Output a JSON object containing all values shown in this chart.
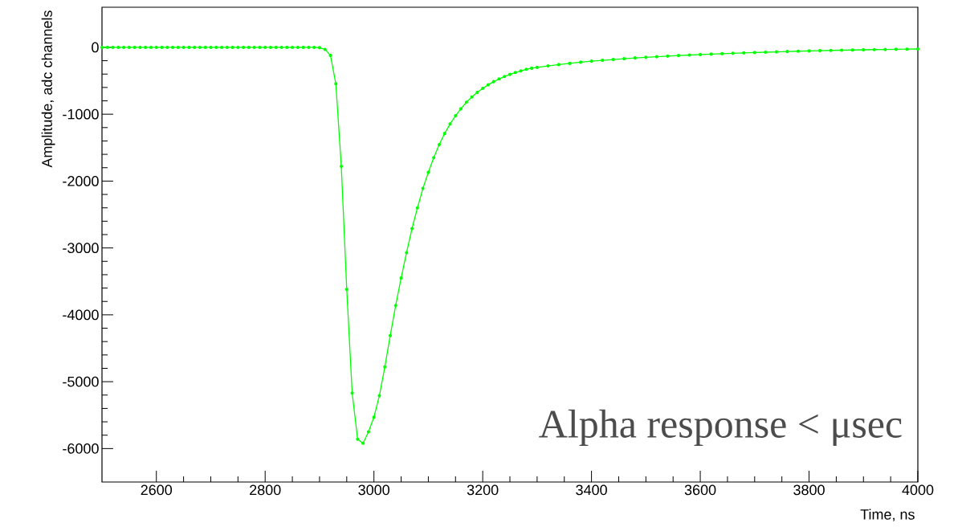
{
  "chart_data": {
    "type": "line",
    "xlabel": "Time, ns",
    "ylabel": "Amplitude, adc channels",
    "annotations": [
      "Alpha response < μsec"
    ],
    "xlim": [
      2500,
      4000
    ],
    "ylim": [
      -6500,
      600
    ],
    "xticks": [
      2600,
      2800,
      3000,
      3200,
      3400,
      3600,
      3800,
      4000
    ],
    "yticks": [
      -6000,
      -5000,
      -4000,
      -3000,
      -2000,
      -1000,
      0
    ],
    "marker": "circle",
    "line_style": "solid",
    "series": [
      {
        "color": "#00ff00",
        "x": [
          2500,
          2510,
          2520,
          2530,
          2540,
          2550,
          2560,
          2570,
          2580,
          2590,
          2600,
          2610,
          2620,
          2630,
          2640,
          2650,
          2660,
          2670,
          2680,
          2690,
          2700,
          2710,
          2720,
          2730,
          2740,
          2750,
          2760,
          2770,
          2780,
          2790,
          2800,
          2810,
          2820,
          2830,
          2840,
          2850,
          2860,
          2870,
          2880,
          2890,
          2900,
          2910,
          2920,
          2930,
          2940,
          2950,
          2960,
          2970,
          2980,
          2990,
          3000,
          3010,
          3020,
          3030,
          3040,
          3050,
          3060,
          3070,
          3080,
          3090,
          3100,
          3110,
          3120,
          3130,
          3140,
          3150,
          3160,
          3170,
          3180,
          3190,
          3200,
          3210,
          3220,
          3230,
          3240,
          3250,
          3260,
          3270,
          3280,
          3290,
          3300,
          3320,
          3340,
          3360,
          3380,
          3400,
          3420,
          3440,
          3460,
          3480,
          3500,
          3520,
          3540,
          3560,
          3580,
          3600,
          3620,
          3640,
          3660,
          3680,
          3700,
          3720,
          3740,
          3760,
          3780,
          3800,
          3820,
          3840,
          3860,
          3880,
          3900,
          3920,
          3940,
          3960,
          3980,
          4000
        ],
        "values": [
          0,
          0,
          0,
          0,
          0,
          0,
          0,
          0,
          0,
          0,
          0,
          0,
          0,
          0,
          0,
          0,
          0,
          0,
          0,
          0,
          0,
          0,
          0,
          0,
          0,
          0,
          0,
          0,
          0,
          0,
          0,
          0,
          0,
          0,
          0,
          0,
          0,
          0,
          0,
          0,
          -5,
          -30,
          -120,
          -545,
          -1780,
          -3620,
          -5170,
          -5860,
          -5920,
          -5750,
          -5530,
          -5210,
          -4780,
          -4310,
          -3860,
          -3450,
          -3070,
          -2710,
          -2400,
          -2110,
          -1870,
          -1650,
          -1455,
          -1288,
          -1147,
          -1023,
          -918,
          -821,
          -742,
          -673,
          -613,
          -561,
          -513,
          -473,
          -437,
          -405,
          -377,
          -353,
          -329,
          -312,
          -300,
          -278,
          -258,
          -240,
          -222,
          -207,
          -194,
          -182,
          -170,
          -159,
          -149,
          -140,
          -131,
          -123,
          -115,
          -108,
          -101,
          -95,
          -89,
          -83,
          -78,
          -73,
          -68,
          -63,
          -58,
          -54,
          -50,
          -46,
          -43,
          -40,
          -37,
          -34,
          -32,
          -29,
          -27,
          -25
        ]
      }
    ]
  }
}
